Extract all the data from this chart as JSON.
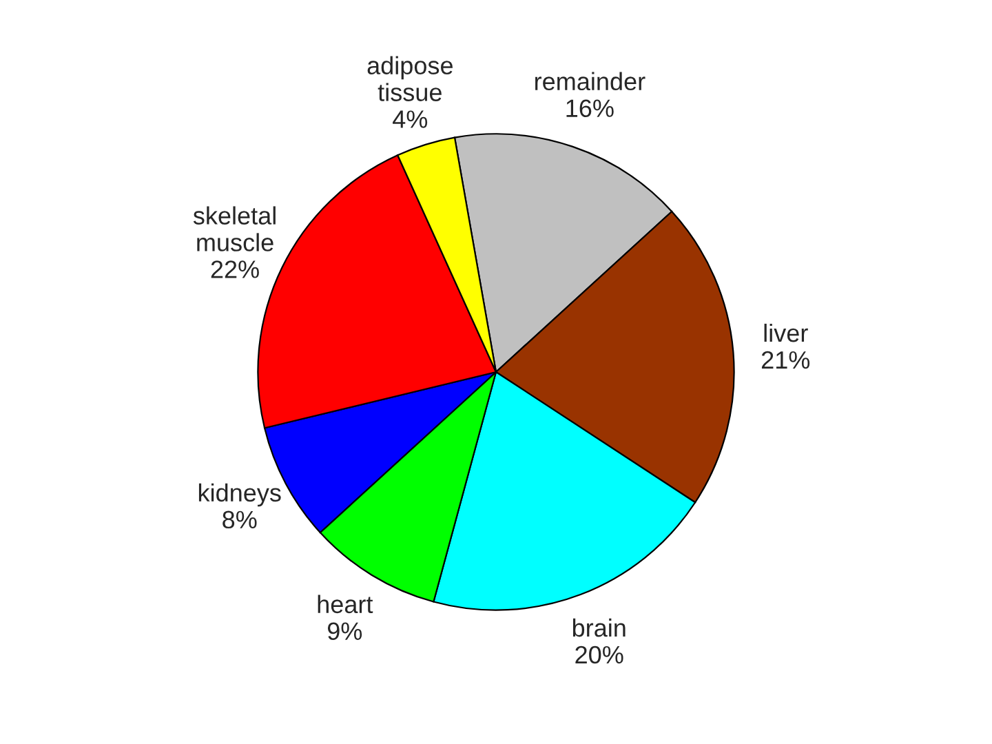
{
  "chart_data": {
    "type": "pie",
    "categories": [
      "remainder",
      "liver",
      "brain",
      "heart",
      "kidneys",
      "skeletal muscle",
      "adipose tissue"
    ],
    "values": [
      16,
      21,
      20,
      9,
      8,
      22,
      4
    ],
    "value_labels": [
      "16%",
      "21%",
      "20%",
      "9%",
      "8%",
      "22%",
      "4%"
    ],
    "colors": [
      "#c0c0c0",
      "#993300",
      "#00ffff",
      "#00ff00",
      "#0000ff",
      "#ff0000",
      "#ffff00"
    ],
    "legend": false
  }
}
